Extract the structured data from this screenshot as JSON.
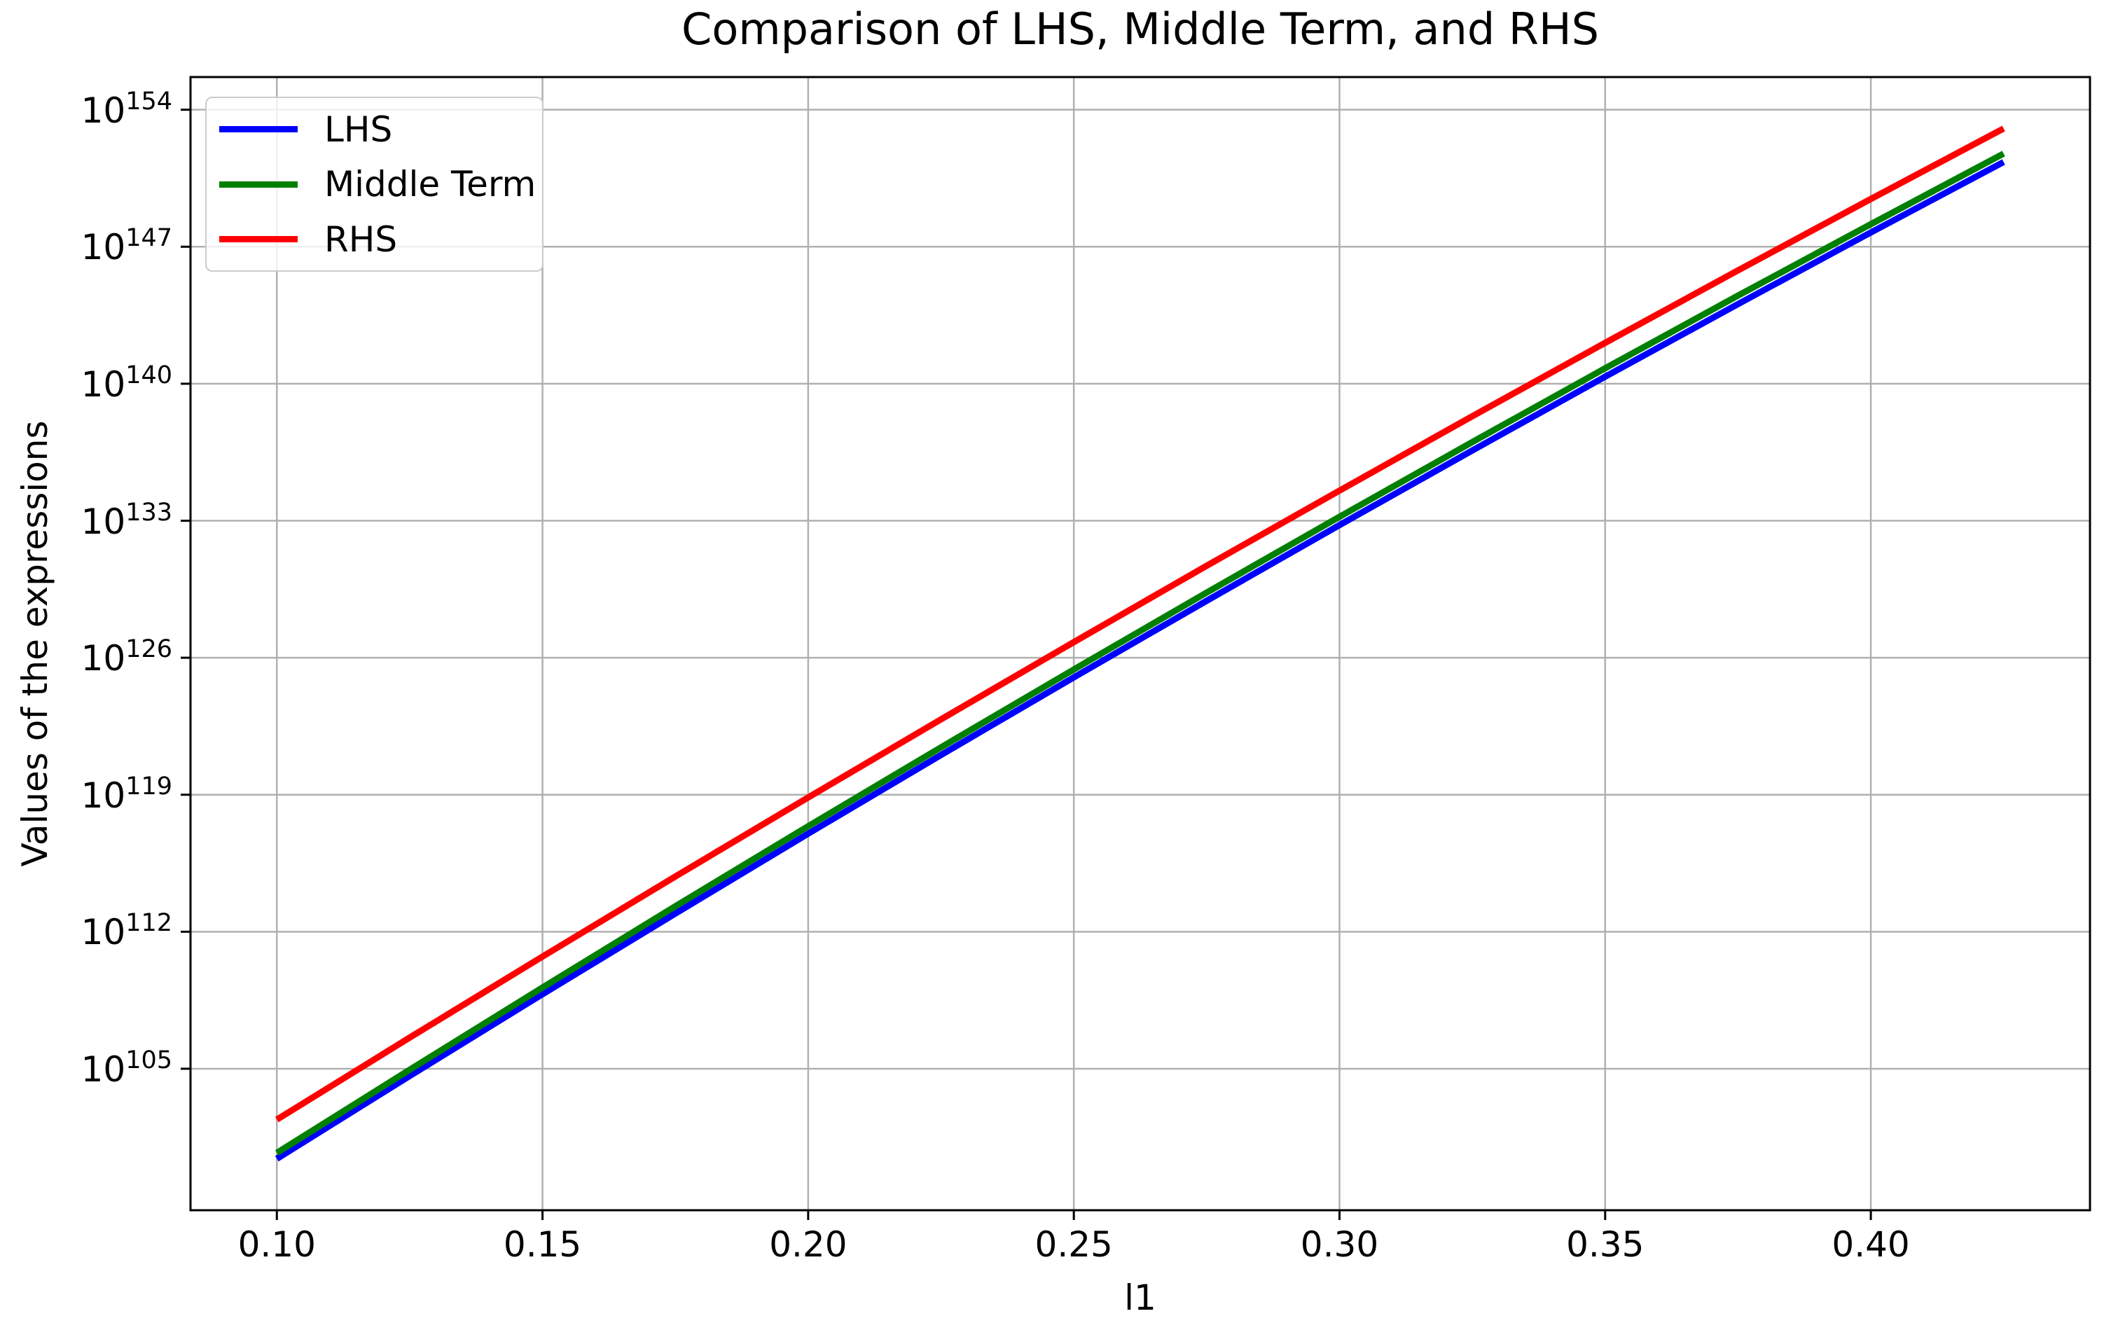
{
  "figure": {
    "background": "#ffffff"
  },
  "chart_data": {
    "type": "line",
    "title": "Comparison of LHS, Middle Term, and RHS",
    "xlabel": "l1",
    "ylabel": "Values of the expressions",
    "x_scale": "linear",
    "y_scale": "log10",
    "grid": true,
    "legend_position": "upper left",
    "note": "y values are astronomically large; log10_values holds the base-10 exponent of each plotted value (value = 10^log10_value)",
    "x": [
      0.1,
      0.125,
      0.15,
      0.175,
      0.2,
      0.225,
      0.25,
      0.275,
      0.3,
      0.325,
      0.35,
      0.375,
      0.4,
      0.425
    ],
    "series": [
      {
        "name": "LHS",
        "color": "#0000ff",
        "log10_values": [
          100.4,
          104.63,
          108.81,
          112.93,
          117.01,
          121.03,
          125.0,
          128.91,
          132.78,
          136.59,
          140.36,
          144.07,
          147.73,
          151.33
        ]
      },
      {
        "name": "Middle Term",
        "color": "#008000",
        "log10_values": [
          100.7,
          104.95,
          109.15,
          113.3,
          117.39,
          121.42,
          125.4,
          129.33,
          133.2,
          137.02,
          140.79,
          144.5,
          148.15,
          151.76
        ]
      },
      {
        "name": "RHS",
        "color": "#ff0000",
        "log10_values": [
          102.4,
          106.59,
          110.73,
          114.82,
          118.86,
          122.85,
          126.8,
          130.7,
          134.54,
          138.34,
          142.09,
          145.79,
          149.44,
          153.04
        ]
      }
    ],
    "x_ticks": [
      0.1,
      0.15,
      0.2,
      0.25,
      0.3,
      0.35,
      0.4
    ],
    "x_tick_labels": [
      "0.10",
      "0.15",
      "0.20",
      "0.25",
      "0.30",
      "0.35",
      "0.40"
    ],
    "y_tick_log10": [
      154,
      147,
      140,
      133,
      126,
      119,
      112,
      105
    ],
    "y_tick_label_base": "10",
    "xlim": [
      0.08375,
      0.44125
    ],
    "ylim_log10": [
      97.77,
      155.67
    ]
  },
  "legend": {
    "items": [
      {
        "label": "LHS",
        "color": "#0000ff"
      },
      {
        "label": "Middle Term",
        "color": "#008000"
      },
      {
        "label": "RHS",
        "color": "#ff0000"
      }
    ]
  },
  "colors": {
    "grid": "#b0b0b0",
    "spine": "#000000",
    "text": "#000000",
    "plot_background": "#ffffff"
  }
}
